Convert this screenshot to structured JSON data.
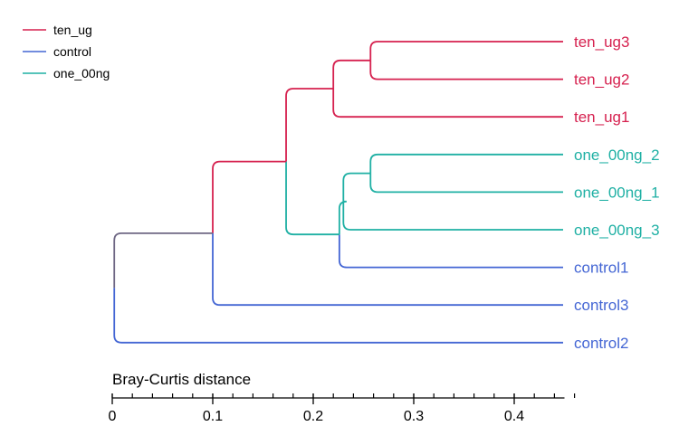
{
  "legend": {
    "entries": [
      {
        "label": "ten_ug",
        "color": "#d6214f"
      },
      {
        "label": "control",
        "color": "#4466d4"
      },
      {
        "label": "one_00ng",
        "color": "#1fb0a4"
      }
    ]
  },
  "colors": {
    "ten_ug": "#d6214f",
    "control": "#4466d4",
    "one_00ng": "#1fb0a4",
    "mixed": "#6e6784",
    "axis": "#000000"
  },
  "axis": {
    "title": "Bray-Curtis distance",
    "ticks": [
      {
        "value": 0,
        "label": "0"
      },
      {
        "value": 0.1,
        "label": "0.1"
      },
      {
        "value": 0.2,
        "label": "0.2"
      },
      {
        "value": 0.3,
        "label": "0.3"
      },
      {
        "value": 0.4,
        "label": "0.4"
      }
    ],
    "minor_step": 0.02,
    "range": [
      0,
      0.45
    ]
  },
  "dendrogram": {
    "leaves": [
      {
        "id": "L1",
        "label": "ten_ug3",
        "group": "ten_ug"
      },
      {
        "id": "L2",
        "label": "ten_ug2",
        "group": "ten_ug"
      },
      {
        "id": "L3",
        "label": "ten_ug1",
        "group": "ten_ug"
      },
      {
        "id": "L4",
        "label": "one_00ng_2",
        "group": "one_00ng"
      },
      {
        "id": "L5",
        "label": "one_00ng_1",
        "group": "one_00ng"
      },
      {
        "id": "L6",
        "label": "one_00ng_3",
        "group": "one_00ng"
      },
      {
        "id": "L7",
        "label": "control1",
        "group": "control"
      },
      {
        "id": "L8",
        "label": "control3",
        "group": "control"
      },
      {
        "id": "L9",
        "label": "control2",
        "group": "control"
      }
    ],
    "merges": [
      {
        "id": "N1",
        "children": [
          "L1",
          "L2"
        ],
        "distance": 0.257,
        "color": "ten_ug"
      },
      {
        "id": "N2",
        "children": [
          "N1",
          "L3"
        ],
        "distance": 0.22,
        "color": "ten_ug"
      },
      {
        "id": "N3",
        "children": [
          "L4",
          "L5"
        ],
        "distance": 0.257,
        "color": "one_00ng"
      },
      {
        "id": "N4",
        "children": [
          "N3",
          "L6"
        ],
        "distance": 0.23,
        "color": "one_00ng"
      },
      {
        "id": "N5",
        "children": [
          "N4",
          "L7"
        ],
        "distance": 0.226,
        "color": "one_00ng"
      },
      {
        "id": "N6",
        "children": [
          "N2",
          "N5"
        ],
        "distance": 0.173,
        "color": "ten_ug"
      },
      {
        "id": "N7",
        "children": [
          "N6",
          "L8"
        ],
        "distance": 0.1,
        "color": "mixed"
      },
      {
        "id": "N8",
        "children": [
          "N7",
          "L9"
        ],
        "distance": 0.002,
        "color": "mixed"
      }
    ]
  }
}
